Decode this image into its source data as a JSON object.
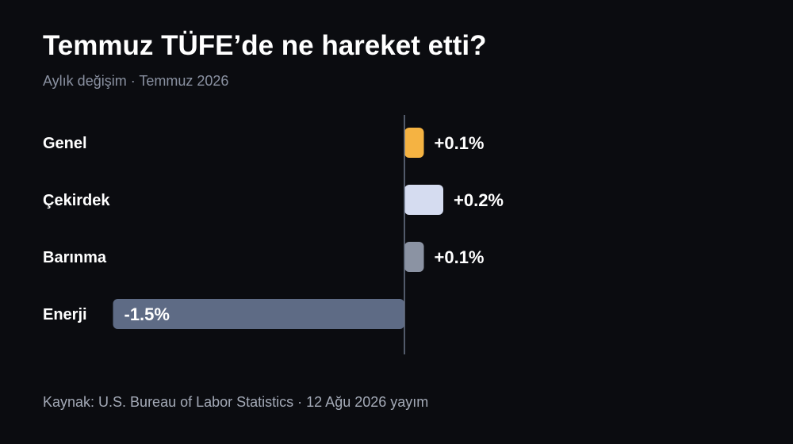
{
  "title": "Temmuz TÜFE’de ne hareket etti?",
  "subtitle": "Aylık değişim · Temmuz 2026",
  "source": "Kaynak: U.S. Bureau of Labor Statistics · 12 Ağu 2026 yayım",
  "chart_data": {
    "type": "bar",
    "orientation": "horizontal",
    "categories": [
      "Genel",
      "Çekirdek",
      "Barınma",
      "Enerji"
    ],
    "values": [
      0.1,
      0.2,
      0.1,
      -1.5
    ],
    "value_labels": [
      "+0.1%",
      "+0.2%",
      "+0.1%",
      "-1.5%"
    ],
    "unit": "%",
    "colors": [
      "#f5b342",
      "#d5dcf0",
      "#8b93a3",
      "#5e6b85"
    ],
    "baseline": 0,
    "grid": false,
    "legend": "none"
  },
  "colors": {
    "background": "#0b0c10",
    "title": "#ffffff",
    "subtitle": "#8a91a1",
    "source": "#a4aab7",
    "axis": "#6b7487",
    "label": "#ffffff"
  }
}
